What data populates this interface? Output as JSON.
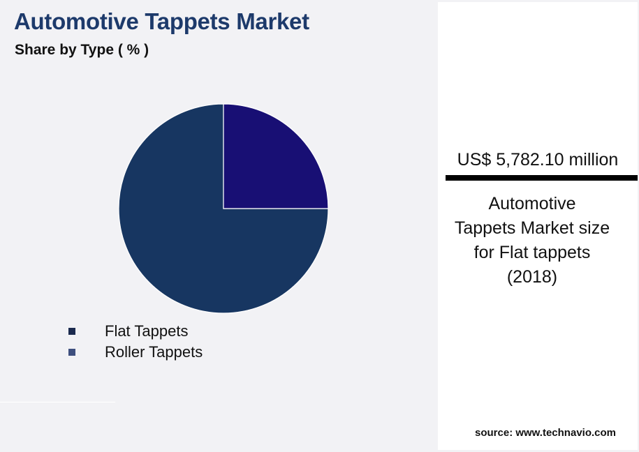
{
  "header": {
    "title": "Automotive Tappets Market",
    "subtitle": "Share by Type ( % )"
  },
  "chart_data": {
    "type": "pie",
    "categories": [
      "Flat Tappets",
      "Roller Tappets"
    ],
    "values": [
      75,
      25
    ],
    "colors": [
      "#173661",
      "#180f74"
    ],
    "legend_placement": "bottom-left",
    "legend_swatch_colors": [
      "#1b2a4e",
      "#3e4f7e"
    ]
  },
  "stat": {
    "value": "US$ 5,782.10 million",
    "caption_lines": [
      "Automotive",
      "Tappets Market size",
      "for Flat tappets",
      "(2018)"
    ]
  },
  "source": "source: www.technavio.com"
}
